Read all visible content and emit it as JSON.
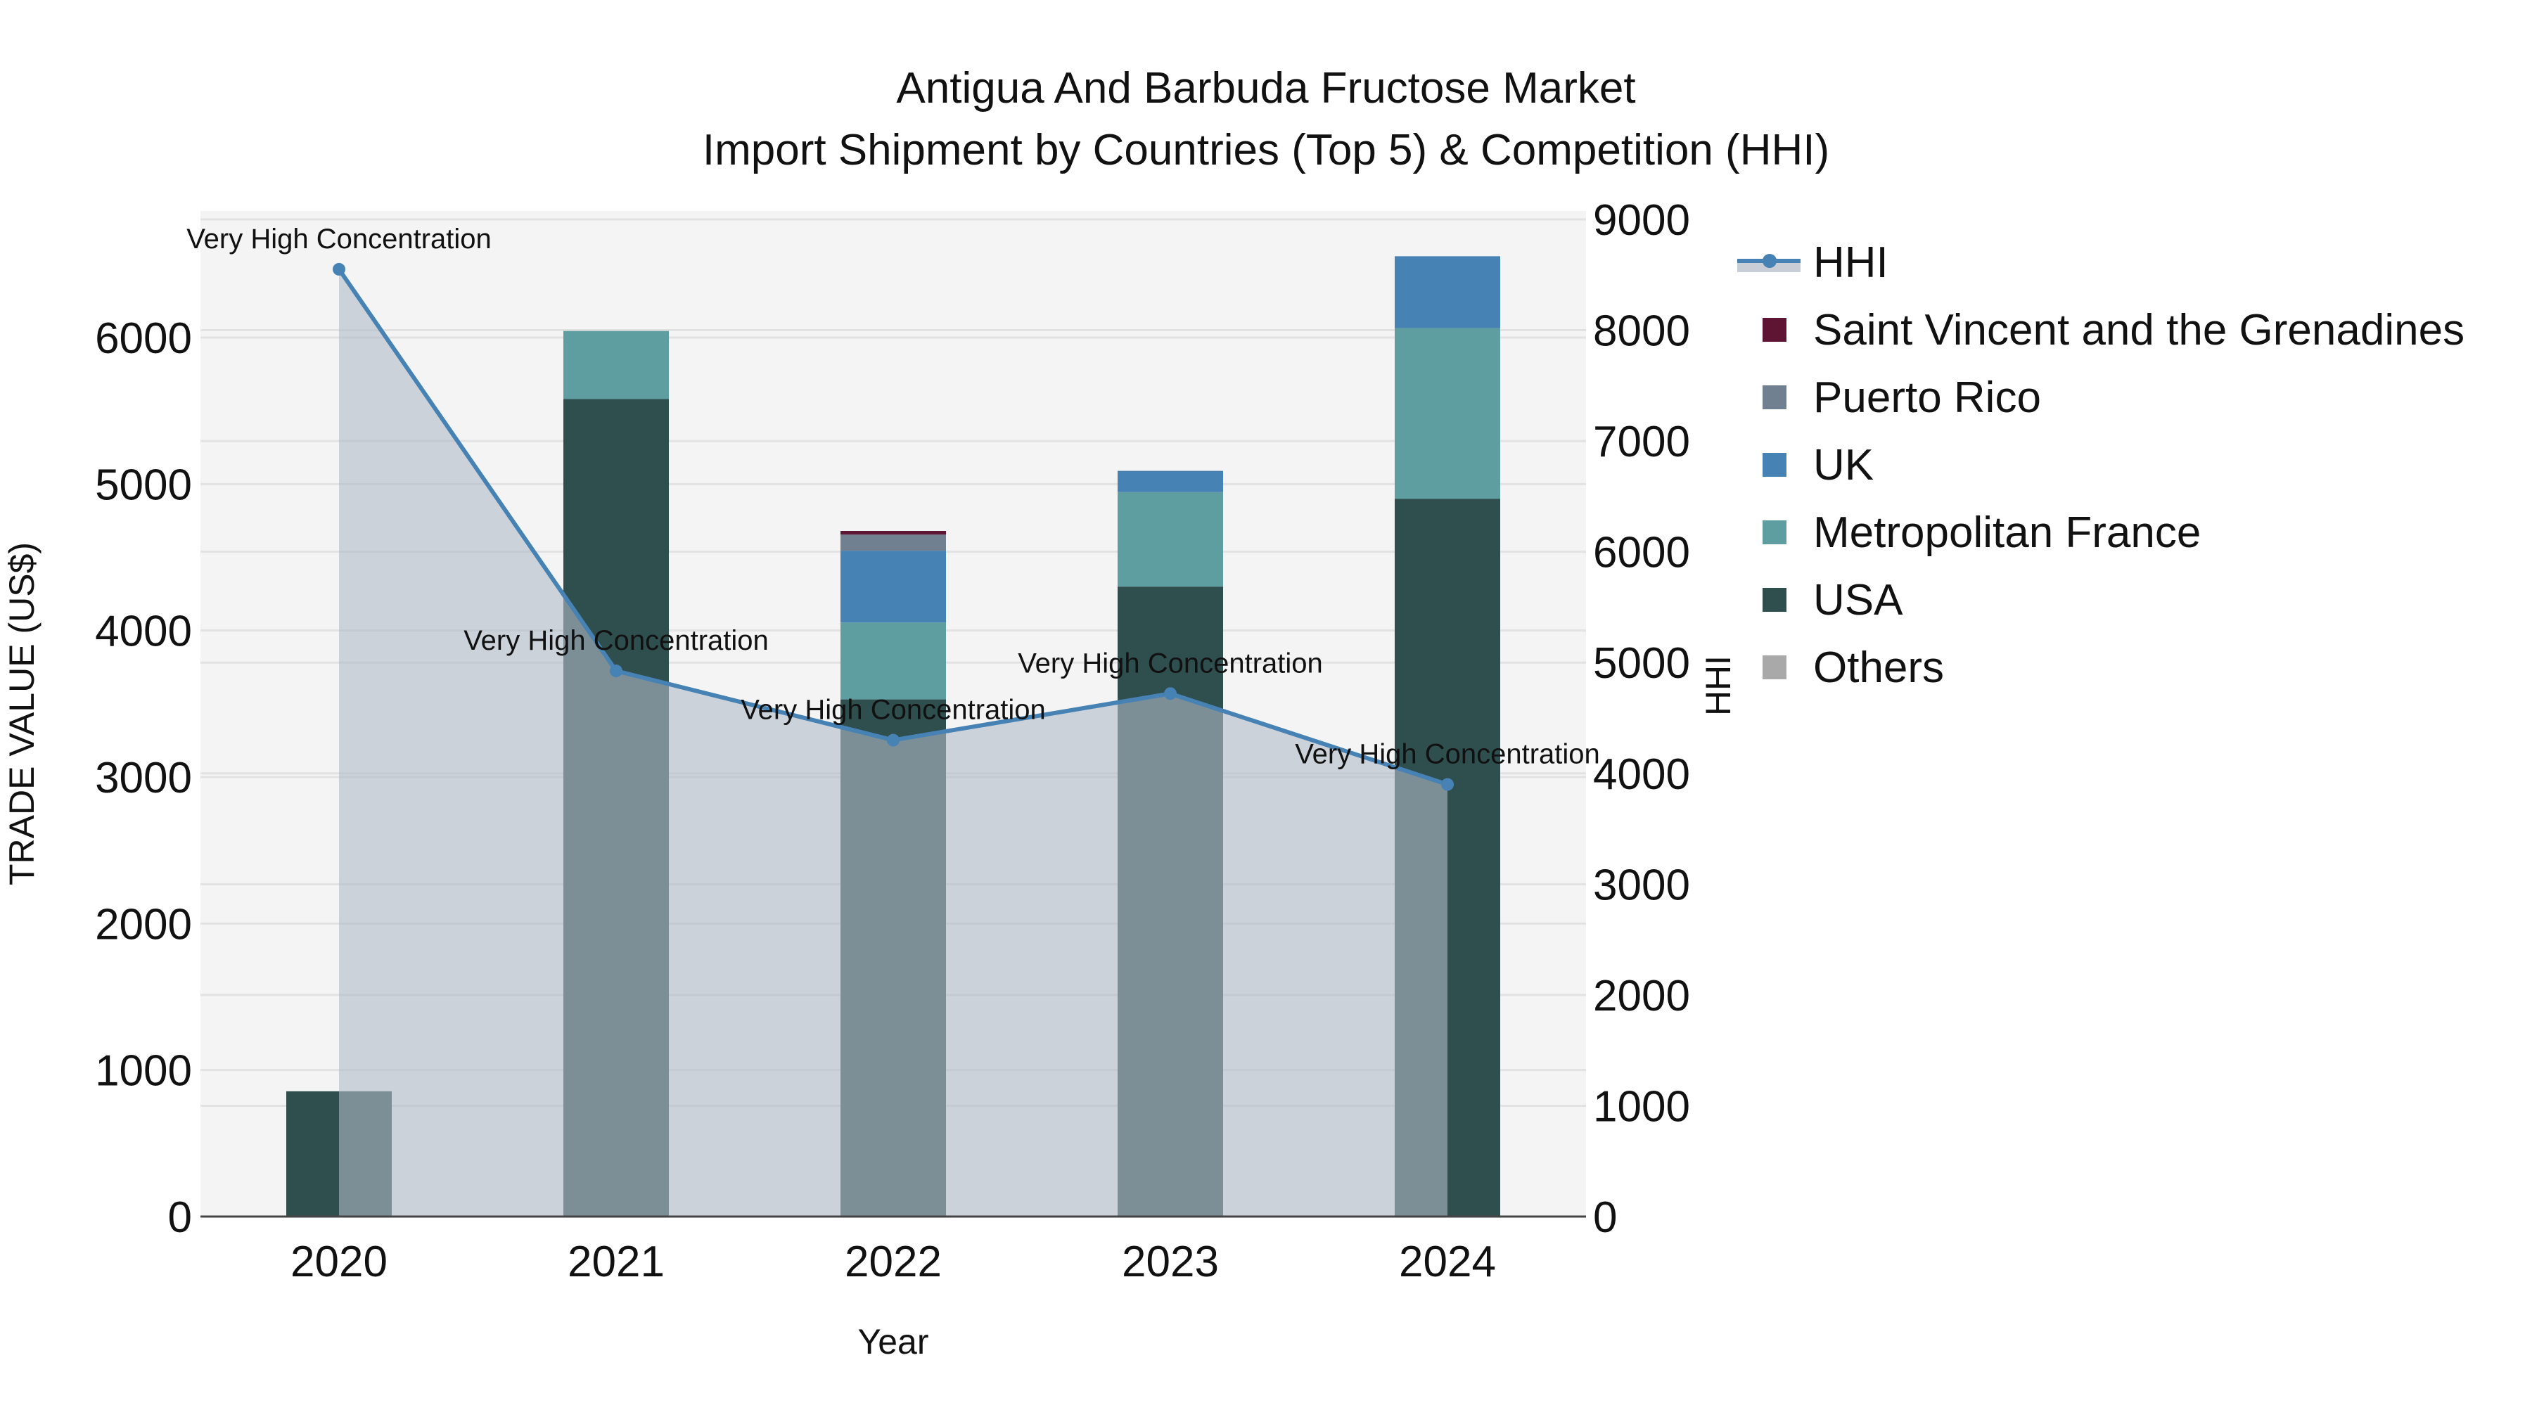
{
  "title": {
    "line1": "Antigua And Barbuda Fructose Market",
    "line2": "Import Shipment by Countries (Top 5) & Competition (HHI)"
  },
  "axes": {
    "x_label": "Year",
    "y_left_label": "TRADE VALUE (US$)",
    "y_right_label": "HHI",
    "y_left_ticks": [
      "0",
      "1000",
      "2000",
      "3000",
      "4000",
      "5000",
      "6000"
    ],
    "y_right_ticks": [
      "0",
      "1000",
      "2000",
      "3000",
      "4000",
      "5000",
      "6000",
      "7000",
      "8000",
      "9000"
    ],
    "x_ticks": [
      "2020",
      "2021",
      "2022",
      "2023",
      "2024"
    ]
  },
  "legend": [
    {
      "label": "HHI",
      "type": "line",
      "color": "#4682B4",
      "fill": "#C9CED6"
    },
    {
      "label": "Saint Vincent and the Grenadines",
      "type": "box",
      "color": "#5E1433"
    },
    {
      "label": "Puerto Rico",
      "type": "box",
      "color": "#708090"
    },
    {
      "label": "UK",
      "type": "box",
      "color": "#4682B4"
    },
    {
      "label": "Metropolitan France",
      "type": "box",
      "color": "#5F9EA0"
    },
    {
      "label": "USA",
      "type": "box",
      "color": "#2F4F4F"
    },
    {
      "label": "Others",
      "type": "box",
      "color": "#A9A9A9"
    }
  ],
  "annotation_text": "Very High Concentration",
  "colors": {
    "plot_bg": "#F4F4F4",
    "grid": "#E2E2E2",
    "hhi_line": "#4682B4",
    "hhi_fill": "rgba(176,186,200,0.6)"
  },
  "chart_data": {
    "type": "bar",
    "title": "Antigua And Barbuda Fructose Market — Import Shipment by Countries (Top 5) & Competition (HHI)",
    "xlabel": "Year",
    "ylabel": "TRADE VALUE (US$)",
    "y2label": "HHI",
    "ylim": [
      0,
      6800
    ],
    "y2lim": [
      0,
      9000
    ],
    "categories": [
      "2020",
      "2021",
      "2022",
      "2023",
      "2024"
    ],
    "stacked": true,
    "series": [
      {
        "name": "USA",
        "color": "#2F4F4F",
        "values": [
          855,
          5580,
          3530,
          4300,
          4900
        ]
      },
      {
        "name": "Metropolitan France",
        "color": "#5F9EA0",
        "values": [
          0,
          465,
          525,
          645,
          1165
        ]
      },
      {
        "name": "UK",
        "color": "#4682B4",
        "values": [
          0,
          0,
          490,
          145,
          490
        ]
      },
      {
        "name": "Puerto Rico",
        "color": "#708090",
        "values": [
          0,
          0,
          110,
          0,
          0
        ]
      },
      {
        "name": "Saint Vincent and the Grenadines",
        "color": "#5E1433",
        "values": [
          0,
          0,
          25,
          0,
          0
        ]
      },
      {
        "name": "Others",
        "color": "#A9A9A9",
        "values": [
          0,
          0,
          0,
          0,
          0
        ]
      }
    ],
    "line_series": {
      "name": "HHI",
      "axis": "right",
      "type": "line+area",
      "color": "#4682B4",
      "values": [
        8550,
        4925,
        4300,
        4720,
        3900
      ],
      "annotations": [
        "Very High Concentration",
        "Very High Concentration",
        "Very High Concentration",
        "Very High Concentration",
        "Very High Concentration"
      ]
    },
    "grid": true,
    "legend_position": "right"
  }
}
